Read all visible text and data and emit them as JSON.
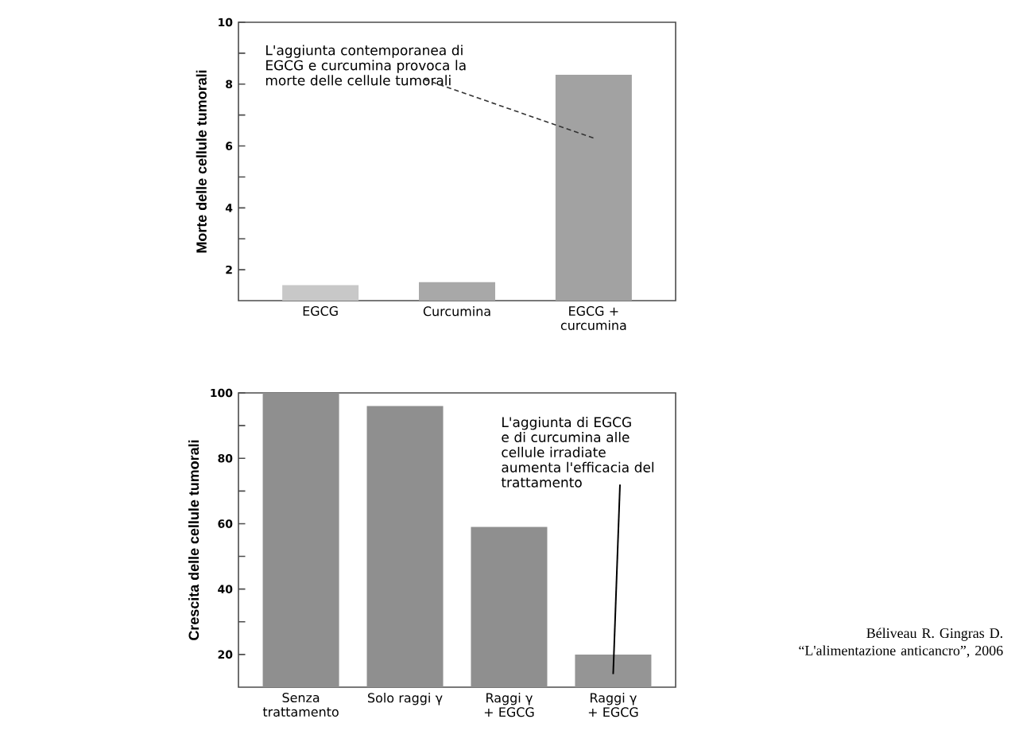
{
  "chart_data": [
    {
      "type": "bar",
      "ylabel": "Morte delle cellule tumorali",
      "categories": [
        "EGCG",
        "Curcumina",
        "EGCG + curcumina"
      ],
      "values": [
        1.5,
        1.6,
        8.3
      ],
      "colors": [
        "#c8c8c8",
        "#a8a8a8",
        "#a2a2a2"
      ],
      "ylim": [
        1,
        10
      ],
      "yticks": [
        2,
        {
          "value": 3,
          "label": null
        },
        4,
        {
          "value": 5,
          "label": null
        },
        6,
        {
          "value": 7,
          "label": null
        },
        8,
        {
          "value": 9,
          "label": null
        },
        10
      ],
      "grid": false,
      "annotations": [
        "L'aggiunta contemporanea di EGCG e curcumina provoca la morte delle cellule tumorali"
      ]
    },
    {
      "type": "bar",
      "ylabel": "Crescita delle cellule tumorali",
      "categories": [
        "Senza trattamento",
        "Solo raggi γ",
        "Raggi γ + EGCG",
        "Raggi γ + EGCG"
      ],
      "values": [
        100,
        96,
        59,
        20
      ],
      "colors": [
        "#8f8f8f",
        "#8f8f8f",
        "#8f8f8f",
        "#959595"
      ],
      "ylim": [
        10,
        100
      ],
      "yticks": [
        20,
        {
          "value": 30,
          "label": null
        },
        40,
        {
          "value": 50,
          "label": null
        },
        60,
        {
          "value": 70,
          "label": null
        },
        80,
        {
          "value": 90,
          "label": null
        },
        100
      ],
      "grid": false,
      "annotations": [
        "L'aggiunta di EGCG e di curcumina alle cellule irradiate aumenta l'efficacia del trattamento",
        "Béliveau R. Gingras D. “L'alimentazione anticancro”, 2006"
      ]
    }
  ]
}
